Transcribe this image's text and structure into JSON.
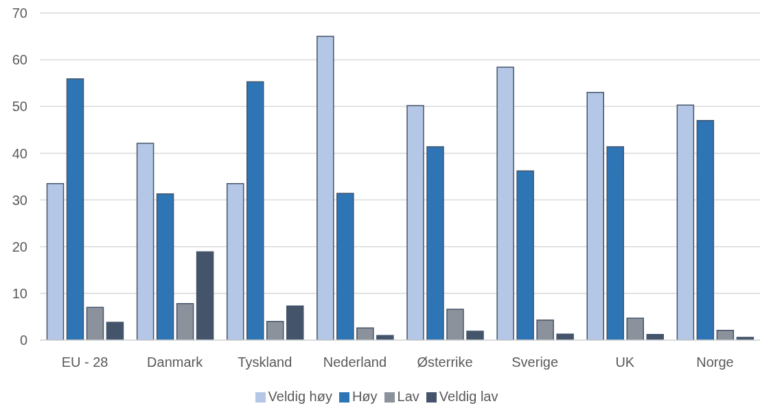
{
  "chart_data": {
    "type": "bar",
    "categories": [
      "EU - 28",
      "Danmark",
      "Tyskland",
      "Nederland",
      "Østerrike",
      "Sverige",
      "UK",
      "Norge"
    ],
    "series": [
      {
        "name": "Veldig høy",
        "color": "#b4c7e7",
        "values": [
          33.5,
          42.1,
          33.5,
          65.0,
          50.2,
          58.4,
          53.0,
          50.3
        ]
      },
      {
        "name": "Høy",
        "color": "#2e75b6",
        "values": [
          55.9,
          31.3,
          55.3,
          31.4,
          41.4,
          36.2,
          41.4,
          47.0
        ]
      },
      {
        "name": "Lav",
        "color": "#8c929c",
        "values": [
          7.0,
          7.8,
          4.0,
          2.6,
          6.6,
          4.3,
          4.7,
          2.1
        ]
      },
      {
        "name": "Veldig lav",
        "color": "#44546a",
        "values": [
          3.8,
          18.9,
          7.3,
          1.0,
          1.9,
          1.3,
          1.2,
          0.6
        ]
      }
    ],
    "ylim": [
      0,
      70
    ],
    "yticks": [
      0,
      10,
      20,
      30,
      40,
      50,
      60,
      70
    ],
    "grid": "y",
    "legend": "bottom"
  }
}
